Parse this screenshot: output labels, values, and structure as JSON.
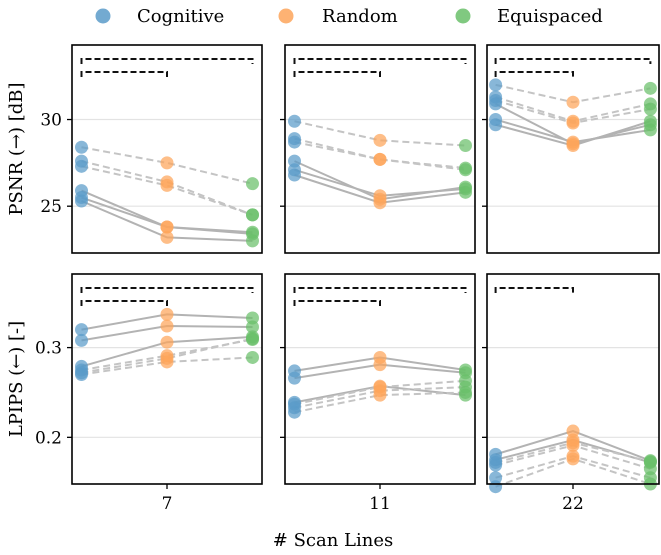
{
  "figure": {
    "xlabel": "# Scan Lines",
    "legend": [
      {
        "name": "Cognitive",
        "color": "#5a9bc9"
      },
      {
        "name": "Random",
        "color": "#fda55a"
      },
      {
        "name": "Equispaced",
        "color": "#6abf6a"
      }
    ]
  },
  "chart_data": [
    {
      "type": "scatter",
      "metric": "PSNR",
      "ylabel": "PSNR (→) [dB]",
      "scan_lines": "7",
      "ylim": [
        22.3,
        34.3
      ],
      "yticks": [
        25,
        30
      ],
      "show_ylabels": true,
      "x": [
        "Cognitive",
        "Random",
        "Equispaced"
      ],
      "significance_brackets": [
        [
          "Cognitive",
          "Equispaced"
        ],
        [
          "Cognitive",
          "Random"
        ]
      ],
      "series": [
        {
          "values": [
            25.9,
            23.8,
            23.5
          ],
          "style": "solid"
        },
        {
          "values": [
            25.5,
            23.8,
            23.4
          ],
          "style": "solid"
        },
        {
          "values": [
            25.3,
            23.2,
            23.0
          ],
          "style": "solid"
        },
        {
          "values": [
            28.4,
            27.5,
            26.3
          ],
          "style": "dashed"
        },
        {
          "values": [
            27.6,
            26.4,
            24.5
          ],
          "style": "dashed"
        },
        {
          "values": [
            27.3,
            26.2,
            24.5
          ],
          "style": "dashed"
        }
      ]
    },
    {
      "type": "scatter",
      "metric": "PSNR",
      "scan_lines": "11",
      "ylim": [
        22.3,
        34.3
      ],
      "yticks": [
        25,
        30
      ],
      "show_ylabels": false,
      "x": [
        "Cognitive",
        "Random",
        "Equispaced"
      ],
      "significance_brackets": [
        [
          "Cognitive",
          "Equispaced"
        ],
        [
          "Cognitive",
          "Random"
        ]
      ],
      "series": [
        {
          "values": [
            27.6,
            25.4,
            26.1
          ],
          "style": "solid"
        },
        {
          "values": [
            27.1,
            25.6,
            26.0
          ],
          "style": "solid"
        },
        {
          "values": [
            26.8,
            25.2,
            25.8
          ],
          "style": "solid"
        },
        {
          "values": [
            29.9,
            28.8,
            28.5
          ],
          "style": "dashed"
        },
        {
          "values": [
            28.9,
            27.7,
            27.2
          ],
          "style": "dashed"
        },
        {
          "values": [
            28.7,
            27.7,
            27.1
          ],
          "style": "dashed"
        }
      ]
    },
    {
      "type": "scatter",
      "metric": "PSNR",
      "scan_lines": "22",
      "ylim": [
        22.3,
        34.3
      ],
      "yticks": [
        25,
        30
      ],
      "show_ylabels": false,
      "x": [
        "Cognitive",
        "Random",
        "Equispaced"
      ],
      "significance_brackets": [
        [
          "Cognitive",
          "Equispaced"
        ],
        [
          "Cognitive",
          "Random"
        ]
      ],
      "series": [
        {
          "values": [
            30.9,
            28.6,
            29.7
          ],
          "style": "solid"
        },
        {
          "values": [
            30.0,
            28.7,
            29.4
          ],
          "style": "solid"
        },
        {
          "values": [
            29.7,
            28.5,
            29.9
          ],
          "style": "solid"
        },
        {
          "values": [
            32.0,
            31.0,
            31.8
          ],
          "style": "dashed"
        },
        {
          "values": [
            31.3,
            29.9,
            30.9
          ],
          "style": "dashed"
        },
        {
          "values": [
            31.1,
            29.8,
            30.6
          ],
          "style": "dashed"
        }
      ]
    },
    {
      "type": "scatter",
      "metric": "LPIPS",
      "ylabel": "LPIPS (←) [-]",
      "scan_lines": "7",
      "ylim": [
        0.148,
        0.382
      ],
      "yticks": [
        0.2,
        0.3
      ],
      "show_ylabels": true,
      "x": [
        "Cognitive",
        "Random",
        "Equispaced"
      ],
      "significance_brackets": [
        [
          "Cognitive",
          "Equispaced"
        ],
        [
          "Cognitive",
          "Random"
        ]
      ],
      "series": [
        {
          "values": [
            0.32,
            0.337,
            0.333
          ],
          "style": "solid"
        },
        {
          "values": [
            0.308,
            0.324,
            0.323
          ],
          "style": "solid"
        },
        {
          "values": [
            0.279,
            0.306,
            0.312
          ],
          "style": "solid"
        },
        {
          "values": [
            0.275,
            0.291,
            0.309
          ],
          "style": "dashed"
        },
        {
          "values": [
            0.272,
            0.288,
            0.31
          ],
          "style": "dashed"
        },
        {
          "values": [
            0.27,
            0.284,
            0.289
          ],
          "style": "dashed"
        }
      ]
    },
    {
      "type": "scatter",
      "metric": "LPIPS",
      "scan_lines": "11",
      "ylim": [
        0.148,
        0.382
      ],
      "yticks": [
        0.2,
        0.3
      ],
      "show_ylabels": false,
      "x": [
        "Cognitive",
        "Random",
        "Equispaced"
      ],
      "significance_brackets": [
        [
          "Cognitive",
          "Equispaced"
        ],
        [
          "Cognitive",
          "Random"
        ]
      ],
      "series": [
        {
          "values": [
            0.274,
            0.289,
            0.275
          ],
          "style": "solid"
        },
        {
          "values": [
            0.266,
            0.281,
            0.272
          ],
          "style": "solid"
        },
        {
          "values": [
            0.239,
            0.257,
            0.247
          ],
          "style": "solid"
        },
        {
          "values": [
            0.237,
            0.256,
            0.263
          ],
          "style": "dashed"
        },
        {
          "values": [
            0.233,
            0.252,
            0.256
          ],
          "style": "dashed"
        },
        {
          "values": [
            0.228,
            0.247,
            0.25
          ],
          "style": "dashed"
        }
      ]
    },
    {
      "type": "scatter",
      "metric": "LPIPS",
      "scan_lines": "22",
      "ylim": [
        0.148,
        0.382
      ],
      "yticks": [
        0.2,
        0.3
      ],
      "show_ylabels": false,
      "x": [
        "Cognitive",
        "Random",
        "Equispaced"
      ],
      "significance_brackets": [
        [
          "Cognitive",
          "Random"
        ]
      ],
      "series": [
        {
          "values": [
            0.181,
            0.207,
            0.174
          ],
          "style": "solid"
        },
        {
          "values": [
            0.175,
            0.197,
            0.172
          ],
          "style": "solid"
        },
        {
          "values": [
            0.172,
            0.194,
            0.173
          ],
          "style": "dashed"
        },
        {
          "values": [
            0.169,
            0.191,
            0.165
          ],
          "style": "dashed"
        },
        {
          "values": [
            0.155,
            0.179,
            0.155
          ],
          "style": "dashed"
        },
        {
          "values": [
            0.145,
            0.176,
            0.148
          ],
          "style": "dashed"
        }
      ]
    }
  ]
}
